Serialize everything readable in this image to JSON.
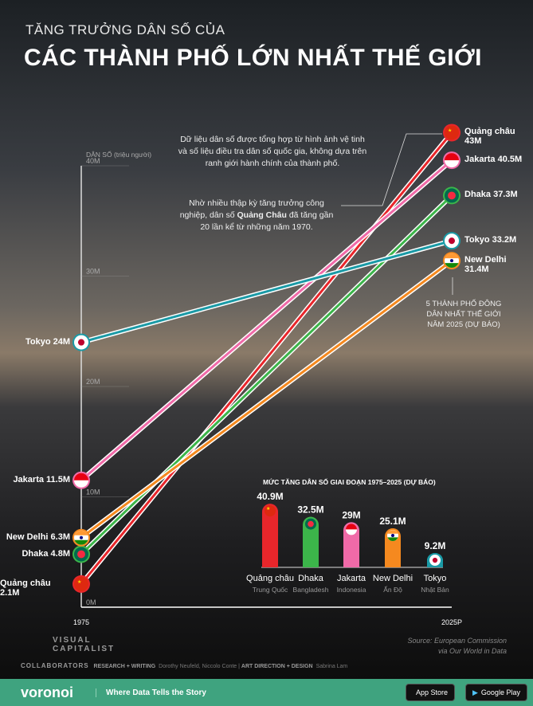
{
  "header": {
    "subtitle": "TĂNG TRƯỞNG DÂN SỐ CỦA",
    "title": "CÁC THÀNH PHỐ LỚN NHẤT THẾ GIỚI"
  },
  "notes": {
    "data_note": "Dữ liệu dân số được tổng hợp từ hình ảnh vệ tinh và số liệu điều tra dân số quốc gia, không dựa trên ranh giới hành chính của thành phố.",
    "guangzhou_note_pre": "Nhờ nhiều thập kỳ tăng trưởng công nghiệp, dân số ",
    "guangzhou_note_bold": "Quảng Châu",
    "guangzhou_note_post": " đã tăng gần 20 lần kể từ những năm 1970.",
    "top5_note": "5 THÀNH PHỐ ĐÔNG DÂN NHẤT THẾ GIỚI NĂM 2025 (DỰ BÁO)"
  },
  "chart_data": [
    {
      "type": "line",
      "title": "Tăng trưởng dân số của các thành phố lớn nhất thế giới",
      "ylabel": "DÂN SỐ (triệu người)",
      "x": [
        "1975",
        "2025P"
      ],
      "ylim": [
        0,
        40
      ],
      "yticks": [
        "0M",
        "10M",
        "20M",
        "30M",
        "40M"
      ],
      "series": [
        {
          "name": "Quảng châu",
          "values": [
            2.1,
            43
          ],
          "start_label": "2.1M",
          "end_label": "43M",
          "color": "#e8262b",
          "flag": "china"
        },
        {
          "name": "Jakarta",
          "values": [
            11.5,
            40.5
          ],
          "start_label": "11.5M",
          "end_label": "40.5M",
          "color": "#f06aa8",
          "flag": "indonesia"
        },
        {
          "name": "Dhaka",
          "values": [
            4.8,
            37.3
          ],
          "start_label": "4.8M",
          "end_label": "37.3M",
          "color": "#3cb54a",
          "flag": "bangladesh"
        },
        {
          "name": "Tokyo",
          "values": [
            24,
            33.2
          ],
          "start_label": "24M",
          "end_label": "33.2M",
          "color": "#1a9aa6",
          "flag": "japan"
        },
        {
          "name": "New Delhi",
          "values": [
            6.3,
            31.4
          ],
          "start_label": "6.3M",
          "end_label": "31.4M",
          "color": "#f5891f",
          "flag": "india"
        }
      ]
    },
    {
      "type": "bar",
      "title": "MỨC TĂNG DÂN SỐ GIAI ĐOẠN 1975–2025 (DỰ BÁO)",
      "categories": [
        "Quảng châu",
        "Dhaka",
        "Jakarta",
        "New Delhi",
        "Tokyo"
      ],
      "countries": [
        "Trung Quốc",
        "Bangladesh",
        "Indonesia",
        "Ấn Độ",
        "Nhật Bản"
      ],
      "values": [
        40.9,
        32.5,
        29,
        25.1,
        9.2
      ],
      "labels": [
        "40.9M",
        "32.5M",
        "29M",
        "25.1M",
        "9.2M"
      ],
      "colors": [
        "#e8262b",
        "#3cb54a",
        "#f06aa8",
        "#f5891f",
        "#1a9aa6"
      ]
    }
  ],
  "source": {
    "line1": "Source: European Commission",
    "line2": "via Our World in Data"
  },
  "brand": {
    "vc_line1": "VISUAL",
    "vc_line2": "CAPITALIST",
    "collab_label": "COLLABORATORS",
    "research_label": "RESEARCH + WRITING",
    "research_names": "Dorothy Neufeld, Niccolo Conte",
    "design_label": "ART DIRECTION + DESIGN",
    "design_name": "Sabrina Lam"
  },
  "footer": {
    "logo": "voronoi",
    "tagline": "Where Data Tells the Story",
    "app_store": "App Store",
    "google_play": "Google Play"
  }
}
